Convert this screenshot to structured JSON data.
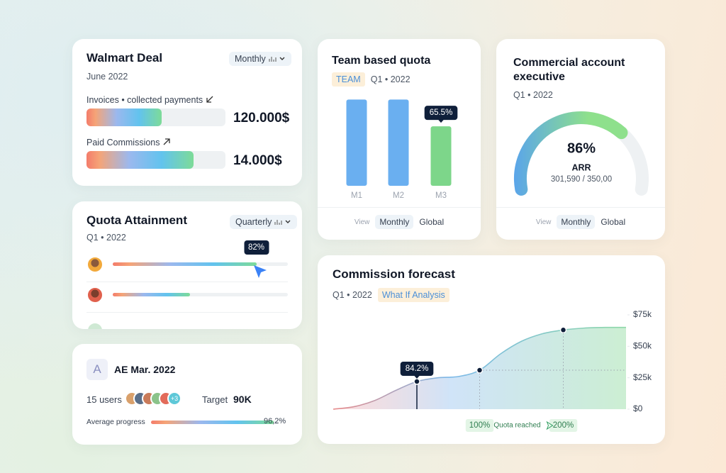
{
  "walmart_deal": {
    "title": "Walmart Deal",
    "period": "Monthly",
    "date": "June 2022",
    "rows": [
      {
        "label": "Invoices • collected payments",
        "amount": "120.000$",
        "progress": 54
      },
      {
        "label": "Paid Commissions",
        "amount": "14.000$",
        "progress": 77
      }
    ]
  },
  "quota_attainment": {
    "title": "Quota Attainment",
    "period": "Quarterly",
    "date": "Q1 • 2022",
    "rows": [
      {
        "progress": 82,
        "progress_label": "82%"
      },
      {
        "progress": 44
      }
    ]
  },
  "ae_card": {
    "avatar_letter": "A",
    "title": "AE Mar. 2022",
    "users": "15 users",
    "extra_users": "+3",
    "target_label": "Target",
    "target": "90K",
    "progress_label": "Average progress",
    "progress": {
      "value": 96.2,
      "label": "96,2%"
    }
  },
  "team_card_controls": {
    "label": "View",
    "options": [
      "Monthly",
      "Global"
    ]
  },
  "executive_card_controls": {
    "label": "View",
    "options": [
      "Monthly",
      "Global"
    ]
  },
  "chart_data": [
    {
      "type": "bar",
      "title": "Team based quota",
      "tag": "TEAM",
      "subtitle": "Q1 • 2022",
      "categories": [
        "M1",
        "M2",
        "M3"
      ],
      "values": [
        95,
        95,
        65.5
      ],
      "value_labels": [
        null,
        null,
        "65.5%"
      ],
      "colors": [
        "#6aaff0",
        "#6aaff0",
        "#7dd68a"
      ],
      "ylim": [
        0,
        100
      ]
    },
    {
      "type": "gauge",
      "title": "Commercial account executive",
      "subtitle": "Q1 • 2022",
      "value": 86,
      "value_label": "86%",
      "label": "ARR",
      "detail": "301,590 / 350,00",
      "ylim": [
        0,
        100
      ]
    },
    {
      "type": "area",
      "title": "Commission forecast",
      "subtitle": "Q1 • 2022",
      "tag": "What If Analysis",
      "categories": [
        null,
        null,
        null,
        null,
        null,
        null,
        null,
        "100%",
        null,
        null,
        null,
        "200%",
        null,
        null,
        null
      ],
      "values": [
        0,
        2000,
        7000,
        15000,
        22000,
        25000,
        26000,
        31000,
        44000,
        54000,
        60000,
        63000,
        64500,
        65000,
        65000
      ],
      "value_labels": [
        null,
        null,
        null,
        null,
        "84.2%",
        null,
        null,
        null,
        null,
        null,
        null,
        null,
        null,
        null,
        null
      ],
      "annotation": "Quota reached",
      "ylim": [
        0,
        75000
      ],
      "yticks": [
        {
          "value": 0,
          "label": "$0"
        },
        {
          "value": 25000,
          "label": "$25k"
        },
        {
          "value": 50000,
          "label": "$50k"
        },
        {
          "value": 75000,
          "label": "$75k"
        }
      ]
    }
  ]
}
